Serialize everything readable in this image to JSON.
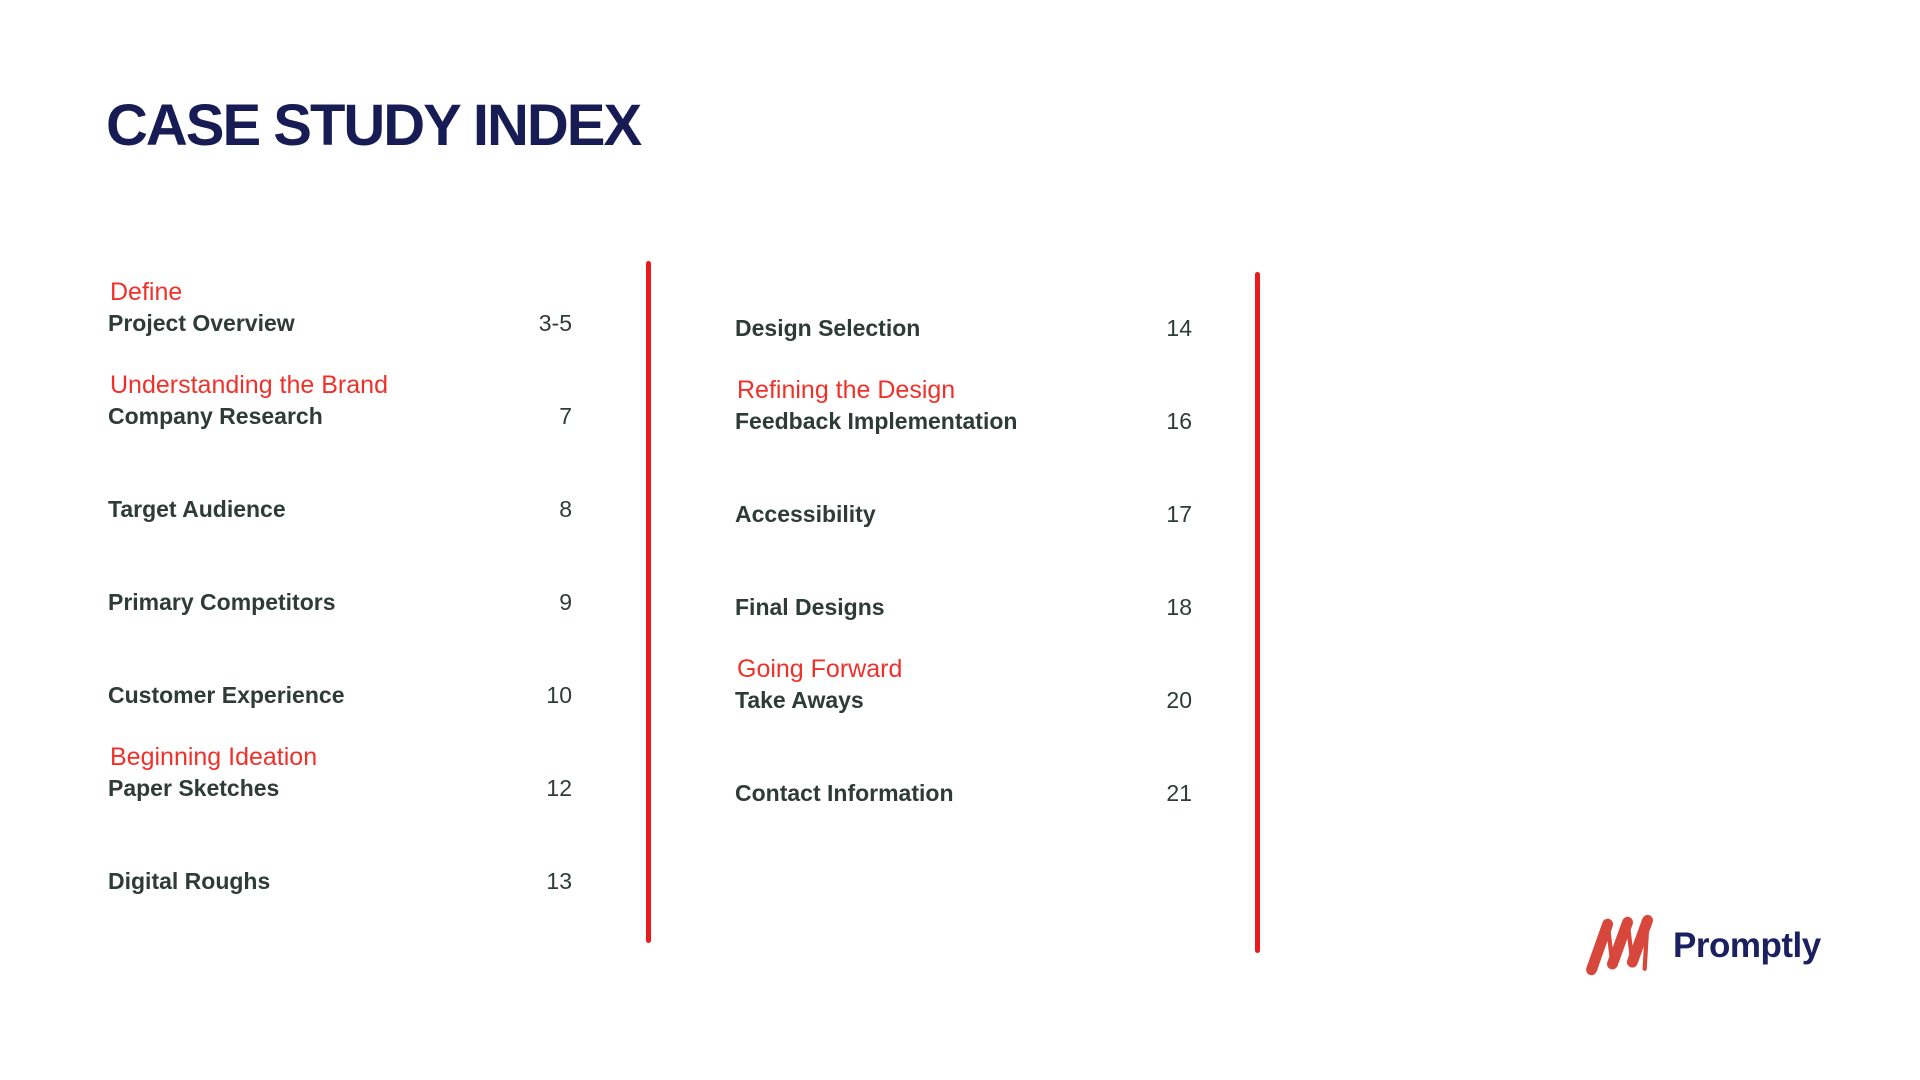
{
  "title": "CASE STUDY INDEX",
  "colors": {
    "background": "#ffffff",
    "navy": "#181C55",
    "item_text": "#2F3B37",
    "red_text": "#F0312A",
    "red_line": "#E9191C",
    "logo_red": "#D7473B",
    "logo_navy": "#1A2060"
  },
  "columns": [
    {
      "name": "left",
      "entries": [
        {
          "section": "Define",
          "label": "Project Overview",
          "page": "3-5"
        },
        {
          "section": "Understanding the Brand",
          "label": "Company Research",
          "page": "7"
        },
        {
          "label": "Target Audience",
          "page": "8"
        },
        {
          "label": "Primary Competitors",
          "page": "9"
        },
        {
          "label": "Customer Experience",
          "page": "10"
        },
        {
          "section": "Beginning Ideation",
          "label": "Paper Sketches",
          "page": "12"
        },
        {
          "label": "Digital Roughs",
          "page": "13"
        }
      ]
    },
    {
      "name": "right",
      "entries": [
        {
          "label": "Design Selection",
          "page": "14"
        },
        {
          "section": "Refining the Design",
          "label": "Feedback Implementation",
          "page": "16"
        },
        {
          "label": "Accessibility",
          "page": "17"
        },
        {
          "label": "Final Designs",
          "page": "18"
        },
        {
          "section": "Going Forward",
          "label": "Take Aways",
          "page": "20"
        },
        {
          "label": "Contact Information",
          "page": "21"
        }
      ]
    }
  ],
  "logo": {
    "icon": "scribble-m-icon",
    "text": "Promptly"
  }
}
